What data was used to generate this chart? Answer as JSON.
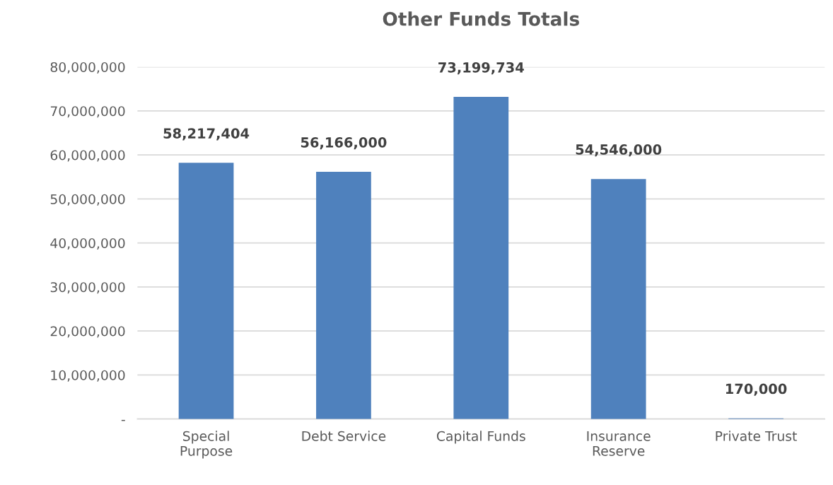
{
  "chart_data": {
    "type": "bar",
    "title": "Other Funds Totals",
    "categories": [
      "Special\nPurpose",
      "Debt Service",
      "Capital Funds",
      "Insurance\nReserve",
      "Private Trust"
    ],
    "values": [
      58217404,
      56166000,
      73199734,
      54546000,
      170000
    ],
    "value_labels": [
      "58,217,404",
      "56,166,000",
      "73,199,734",
      "54,546,000",
      "170,000"
    ],
    "color": "#4f81bd",
    "ylim": [
      0,
      80000000
    ],
    "yticks": [
      {
        "value": 0,
        "label": "-"
      },
      {
        "value": 10000000,
        "label": "10,000,000"
      },
      {
        "value": 20000000,
        "label": "20,000,000"
      },
      {
        "value": 30000000,
        "label": "30,000,000"
      },
      {
        "value": 40000000,
        "label": "40,000,000"
      },
      {
        "value": 50000000,
        "label": "50,000,000"
      },
      {
        "value": 60000000,
        "label": "60,000,000"
      },
      {
        "value": 70000000,
        "label": "70,000,000"
      },
      {
        "value": 80000000,
        "label": "80,000,000"
      }
    ],
    "grid": "y",
    "legend": false
  }
}
